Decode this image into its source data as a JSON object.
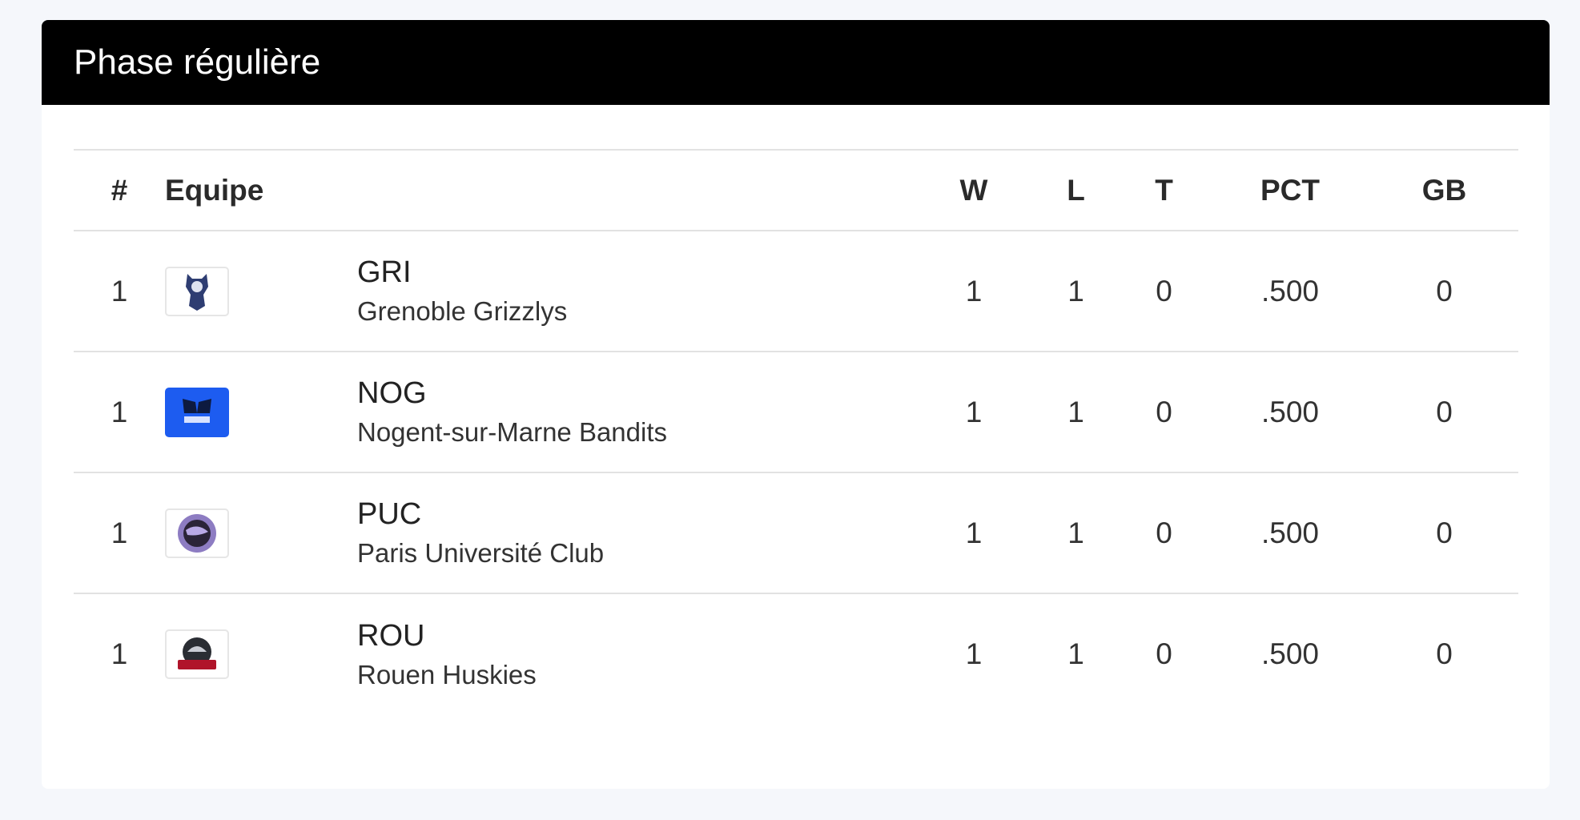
{
  "panel": {
    "title": "Phase régulière"
  },
  "table": {
    "headers": {
      "rank": "#",
      "team": "Equipe",
      "w": "W",
      "l": "L",
      "t": "T",
      "pct": "PCT",
      "gb": "GB"
    },
    "rows": [
      {
        "rank": "1",
        "logo": "grenoble-grizzlys-logo",
        "abbr": "GRI",
        "name": "Grenoble Grizzlys",
        "w": "1",
        "l": "1",
        "t": "0",
        "pct": ".500",
        "gb": "0"
      },
      {
        "rank": "1",
        "logo": "nogent-bandits-logo",
        "abbr": "NOG",
        "name": "Nogent-sur-Marne Bandits",
        "w": "1",
        "l": "1",
        "t": "0",
        "pct": ".500",
        "gb": "0"
      },
      {
        "rank": "1",
        "logo": "puc-logo",
        "abbr": "PUC",
        "name": "Paris Université Club",
        "w": "1",
        "l": "1",
        "t": "0",
        "pct": ".500",
        "gb": "0"
      },
      {
        "rank": "1",
        "logo": "rouen-huskies-logo",
        "abbr": "ROU",
        "name": "Rouen Huskies",
        "w": "1",
        "l": "1",
        "t": "0",
        "pct": ".500",
        "gb": "0"
      }
    ]
  },
  "colors": {
    "header_bg": "#000000",
    "page_bg": "#f5f7fb",
    "nog_logo_bg": "#1d5cf0"
  }
}
